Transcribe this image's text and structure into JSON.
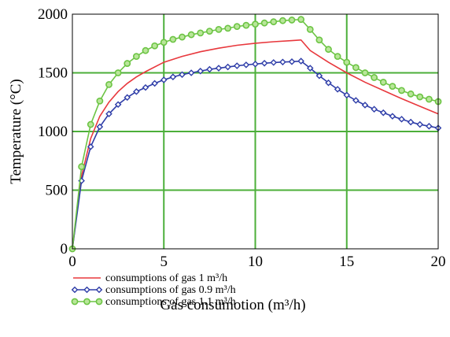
{
  "chart_data": {
    "type": "line",
    "xlabel": "Gas consumotion (m³/h)",
    "ylabel": "Temperature (°C)",
    "xlim": [
      0,
      20
    ],
    "ylim": [
      0,
      2000
    ],
    "x_ticks": [
      "0",
      "5",
      "10",
      "15",
      "20"
    ],
    "y_ticks": [
      "0",
      "500",
      "1000",
      "1500",
      "2000"
    ],
    "grid": true,
    "grid_color": "#4caf3a",
    "legend_position": "bottom-left, below plot",
    "series": [
      {
        "name": "consumptions of gas 1 m³/h",
        "color": "#e8383d",
        "marker": "none",
        "x": [
          0,
          0.5,
          1,
          1.5,
          2,
          2.5,
          3,
          3.5,
          4,
          5,
          6,
          7,
          8,
          9,
          10,
          11,
          12,
          12.5,
          13,
          14,
          15,
          16,
          17,
          18,
          19,
          20
        ],
        "y": [
          0,
          620,
          940,
          1130,
          1250,
          1340,
          1410,
          1465,
          1510,
          1590,
          1640,
          1680,
          1710,
          1735,
          1752,
          1765,
          1775,
          1780,
          1690,
          1590,
          1500,
          1420,
          1350,
          1280,
          1215,
          1150
        ]
      },
      {
        "name": "consumptions of gas 0.9 m³/h",
        "color": "#2e3da8",
        "marker": "diamond",
        "x": [
          0,
          0.5,
          1,
          1.5,
          2,
          2.5,
          3,
          3.5,
          4,
          4.5,
          5,
          5.5,
          6,
          6.5,
          7,
          7.5,
          8,
          8.5,
          9,
          9.5,
          10,
          10.5,
          11,
          11.5,
          12,
          12.5,
          13,
          13.5,
          14,
          14.5,
          15,
          15.5,
          16,
          16.5,
          17,
          17.5,
          18,
          18.5,
          19,
          19.5,
          20
        ],
        "y": [
          0,
          580,
          870,
          1040,
          1150,
          1230,
          1290,
          1340,
          1375,
          1410,
          1440,
          1465,
          1485,
          1500,
          1515,
          1530,
          1540,
          1550,
          1560,
          1568,
          1575,
          1582,
          1588,
          1592,
          1595,
          1600,
          1540,
          1475,
          1415,
          1360,
          1310,
          1265,
          1225,
          1190,
          1160,
          1130,
          1105,
          1080,
          1060,
          1045,
          1030
        ]
      },
      {
        "name": "consumptions of gas 1.1 m³/h",
        "color": "#6cc444",
        "marker": "circle",
        "x": [
          0,
          0.5,
          1,
          1.5,
          2,
          2.5,
          3,
          3.5,
          4,
          4.5,
          5,
          5.5,
          6,
          6.5,
          7,
          7.5,
          8,
          8.5,
          9,
          9.5,
          10,
          10.5,
          11,
          11.5,
          12,
          12.5,
          13,
          13.5,
          14,
          14.5,
          15,
          15.5,
          16,
          16.5,
          17,
          17.5,
          18,
          18.5,
          19,
          19.5,
          20
        ],
        "y": [
          0,
          700,
          1060,
          1260,
          1400,
          1500,
          1580,
          1640,
          1690,
          1730,
          1760,
          1785,
          1805,
          1825,
          1840,
          1855,
          1870,
          1880,
          1895,
          1905,
          1915,
          1925,
          1935,
          1945,
          1950,
          1955,
          1870,
          1780,
          1700,
          1640,
          1590,
          1545,
          1500,
          1460,
          1420,
          1385,
          1350,
          1320,
          1295,
          1275,
          1255
        ]
      }
    ]
  }
}
